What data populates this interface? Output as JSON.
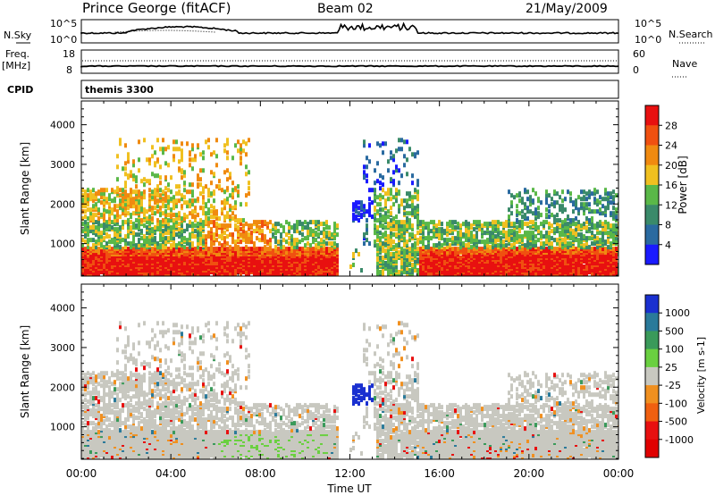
{
  "header": {
    "station": "Prince George (fitACF)",
    "beam": "Beam 02",
    "date": "21/May/2009"
  },
  "nsky": {
    "label": "N.Sky",
    "y_top_label": "10^5",
    "y_bottom_label": "10^0",
    "right_top_label": "10^5",
    "right_bottom_label": "10^0",
    "right_label": "N.Search"
  },
  "freq": {
    "label_top": "Freq.",
    "label_unit": "[MHz]",
    "left_ticks": [
      "18",
      "8"
    ],
    "right_ticks": [
      "60",
      "0"
    ],
    "right_label": "Nave"
  },
  "cpid": {
    "label": "CPID",
    "value": "themis 3300"
  },
  "time_axis": {
    "ticks": [
      "00:00",
      "04:00",
      "08:00",
      "12:00",
      "16:00",
      "20:00",
      "00:00"
    ],
    "label": "Time UT"
  },
  "chart_data": [
    {
      "type": "heatmap",
      "panel": "power",
      "ylabel": "Slant Range [km]",
      "yticks": [
        "1000",
        "2000",
        "3000",
        "4000"
      ],
      "colorbar": {
        "label": "Power [dB]",
        "ticks": [
          "4",
          "8",
          "12",
          "16",
          "20",
          "24",
          "28"
        ],
        "colors": [
          "#1a1aff",
          "#2a6aa0",
          "#3a8a6a",
          "#5ab848",
          "#f0c020",
          "#f08a10",
          "#f05010",
          "#e81010"
        ]
      },
      "xlim": [
        0,
        24
      ],
      "ylim": [
        180,
        4600
      ]
    },
    {
      "type": "heatmap",
      "panel": "velocity",
      "ylabel": "Slant Range [km]",
      "yticks": [
        "1000",
        "2000",
        "3000",
        "4000"
      ],
      "colorbar": {
        "label": "Velocity [m s-1]",
        "ticks": [
          "1000",
          "500",
          "100",
          "25",
          "-25",
          "-100",
          "-500",
          "-1000"
        ],
        "colors": [
          "#1a30d0",
          "#2a7a9a",
          "#3a9a5a",
          "#6ad040",
          "#c8c8c0",
          "#f09020",
          "#f06010",
          "#e81010",
          "#e00000"
        ]
      },
      "xlim": [
        0,
        24
      ],
      "ylim": [
        180,
        4600
      ]
    }
  ]
}
